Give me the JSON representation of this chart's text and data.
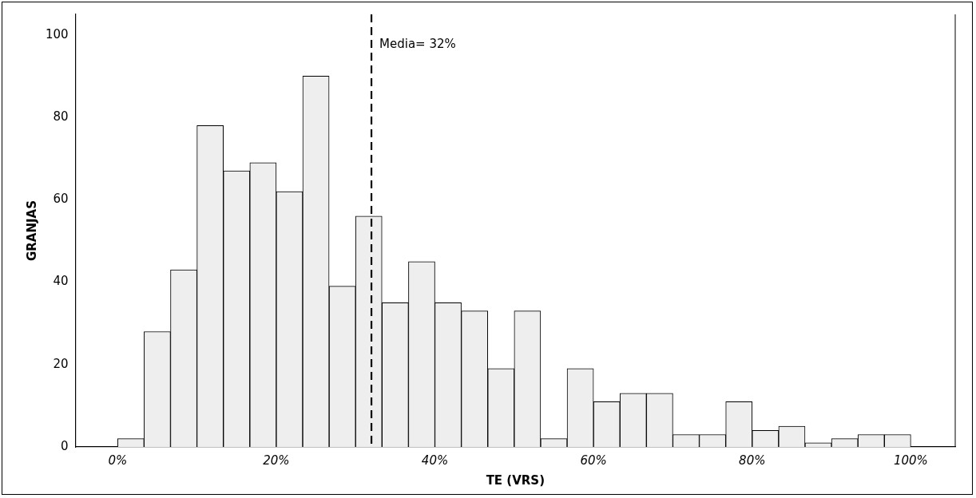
{
  "chart_data": {
    "type": "histogram",
    "xlabel": "TE (VRS)",
    "ylabel": "GRANJAS",
    "bins": [
      0,
      3.33,
      6.67,
      10,
      13.33,
      16.67,
      20,
      23.33,
      26.67,
      30,
      33.33,
      36.67,
      40,
      43.33,
      46.67,
      50,
      53.33,
      56.67,
      60,
      63.33,
      66.67,
      70,
      73.33,
      76.67,
      80,
      83.33,
      86.67,
      90,
      93.33,
      96.67,
      100
    ],
    "values": [
      2,
      28,
      43,
      78,
      67,
      69,
      62,
      90,
      39,
      56,
      35,
      45,
      35,
      33,
      19,
      33,
      2,
      19,
      11,
      13,
      13,
      3,
      3,
      11,
      4,
      5,
      1,
      2,
      3,
      3
    ],
    "color": "#eeeeee",
    "xlim": [
      -5.3,
      105.6
    ],
    "xticks": [
      {
        "value": 0,
        "label": "0%"
      },
      {
        "value": 20,
        "label": "20%"
      },
      {
        "value": 40,
        "label": "40%"
      },
      {
        "value": 60,
        "label": "60%"
      },
      {
        "value": 80,
        "label": "80%"
      },
      {
        "value": 100,
        "label": "100%"
      }
    ],
    "ylim": [
      0,
      105
    ],
    "yticks": [
      0,
      20,
      40,
      60,
      80,
      100
    ],
    "ref_lines": [
      {
        "axis": "x",
        "value": 32,
        "label": "Media= 32%",
        "color": "#000000",
        "line_style": "dashed"
      }
    ],
    "grid": false,
    "legend": false
  }
}
